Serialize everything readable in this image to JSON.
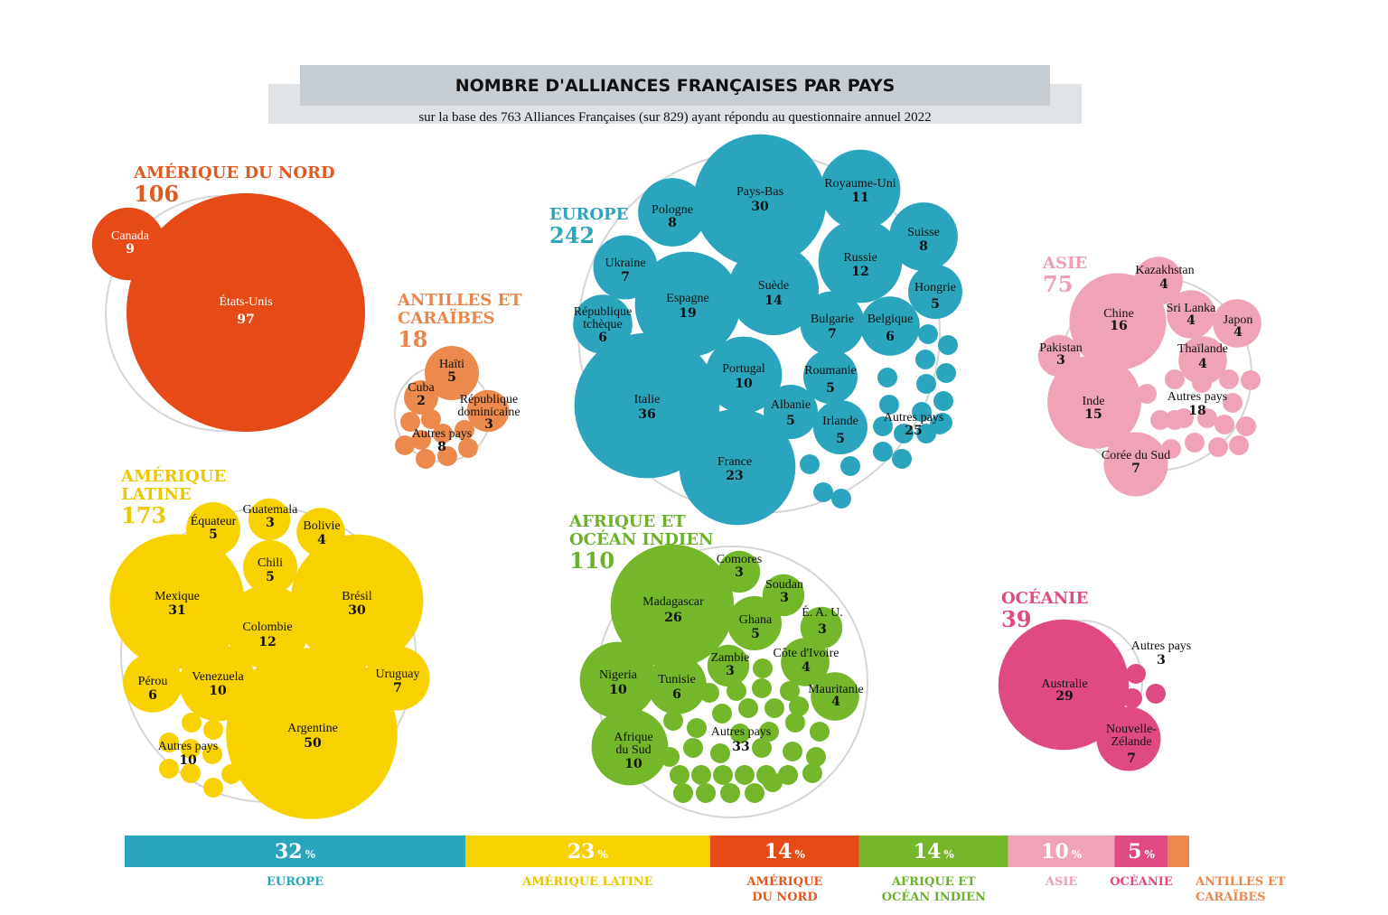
{
  "banner": {
    "title": "NOMBRE D'ALLIANCES FRANÇAISES PAR PAYS",
    "subtitle": "sur la base des 763 Alliances Françaises (sur 829) ayant répondu au questionnaire annuel 2022"
  },
  "chart_data": {
    "type": "bubble",
    "regions": [
      {
        "key": "amerique-nord",
        "lines": [
          "AMÉRIQUE DU NORD"
        ],
        "total": "106",
        "color": "#e54a17",
        "label_color": "#e05a20",
        "countries": [
          {
            "name": "États-Unis",
            "value": 97,
            "lc": "#ffffff"
          },
          {
            "name": "Canada",
            "value": 9,
            "lc": "#ffffff"
          }
        ],
        "autres": null
      },
      {
        "key": "antilles",
        "lines": [
          "ANTILLES ET",
          "CARAÏBES"
        ],
        "total": "18",
        "color": "#ec8a4d",
        "label_color": "#e8874d",
        "countries": [
          {
            "name": "Haïti",
            "value": 5
          },
          {
            "name": "Cuba",
            "value": 2
          },
          {
            "name": "République dominicaine",
            "value": 3
          }
        ],
        "autres": {
          "name": "Autres pays",
          "value": 8
        }
      },
      {
        "key": "europe",
        "lines": [
          "EUROPE"
        ],
        "total": "242",
        "color": "#2ba5bd",
        "label_color": "#2ba5bd",
        "countries": [
          {
            "name": "Pays-Bas",
            "value": 30
          },
          {
            "name": "Royaume-Uni",
            "value": 11
          },
          {
            "name": "Pologne",
            "value": 8
          },
          {
            "name": "Suisse",
            "value": 8
          },
          {
            "name": "Ukraine",
            "value": 7
          },
          {
            "name": "Russie",
            "value": 12
          },
          {
            "name": "Espagne",
            "value": 19
          },
          {
            "name": "Suède",
            "value": 14
          },
          {
            "name": "Hongrie",
            "value": 5
          },
          {
            "name": "République tchèque",
            "value": 6
          },
          {
            "name": "Bulgarie",
            "value": 7
          },
          {
            "name": "Belgique",
            "value": 6
          },
          {
            "name": "Italie",
            "value": 36
          },
          {
            "name": "Portugal",
            "value": 10
          },
          {
            "name": "Roumanie",
            "value": 5
          },
          {
            "name": "Albanie",
            "value": 5
          },
          {
            "name": "Irlande",
            "value": 5
          },
          {
            "name": "France",
            "value": 23
          }
        ],
        "autres": {
          "name": "Autres pays",
          "value": 25
        }
      },
      {
        "key": "asie",
        "lines": [
          "ASIE"
        ],
        "total": "75",
        "color": "#f0a3b6",
        "label_color": "#ee9fb4",
        "countries": [
          {
            "name": "Kazakhstan",
            "value": 4
          },
          {
            "name": "Chine",
            "value": 16
          },
          {
            "name": "Sri Lanka",
            "value": 4
          },
          {
            "name": "Japon",
            "value": 4
          },
          {
            "name": "Pakistan",
            "value": 3
          },
          {
            "name": "Thaïlande",
            "value": 4
          },
          {
            "name": "Inde",
            "value": 15
          },
          {
            "name": "Corée du Sud",
            "value": 7
          }
        ],
        "autres": {
          "name": "Autres pays",
          "value": 18
        }
      },
      {
        "key": "amerique-latine",
        "lines": [
          "AMÉRIQUE",
          "LATINE"
        ],
        "total": "173",
        "color": "#f8d200",
        "label_color": "#ecc800",
        "countries": [
          {
            "name": "Équateur",
            "value": 5
          },
          {
            "name": "Guatemala",
            "value": 3
          },
          {
            "name": "Bolivie",
            "value": 4
          },
          {
            "name": "Chili",
            "value": 5
          },
          {
            "name": "Mexique",
            "value": 31
          },
          {
            "name": "Brésil",
            "value": 30
          },
          {
            "name": "Colombie",
            "value": 12
          },
          {
            "name": "Pérou",
            "value": 6
          },
          {
            "name": "Venezuela",
            "value": 10
          },
          {
            "name": "Uruguay",
            "value": 7
          },
          {
            "name": "Argentine",
            "value": 50
          }
        ],
        "autres": {
          "name": "Autres pays",
          "value": 10
        }
      },
      {
        "key": "afrique",
        "lines": [
          "AFRIQUE ET",
          "OCÉAN INDIEN"
        ],
        "total": "110",
        "color": "#74b72b",
        "label_color": "#6cb12a",
        "countries": [
          {
            "name": "Comores",
            "value": 3
          },
          {
            "name": "Soudan",
            "value": 3
          },
          {
            "name": "Madagascar",
            "value": 26
          },
          {
            "name": "Ghana",
            "value": 5
          },
          {
            "name": "É. A. U.",
            "value": 3
          },
          {
            "name": "Zambie",
            "value": 3
          },
          {
            "name": "Côte d'Ivoire",
            "value": 4
          },
          {
            "name": "Nigeria",
            "value": 10
          },
          {
            "name": "Tunisie",
            "value": 6
          },
          {
            "name": "Mauritanie",
            "value": 4
          },
          {
            "name": "Afrique du Sud",
            "value": 10
          }
        ],
        "autres": {
          "name": "Autres pays",
          "value": 33
        }
      },
      {
        "key": "oceanie",
        "lines": [
          "OCÉANIE"
        ],
        "total": "39",
        "color": "#e04a82",
        "label_color": "#df4a82",
        "countries": [
          {
            "name": "Australie",
            "value": 29
          },
          {
            "name": "Nouvelle-Zélande",
            "value": 7
          }
        ],
        "autres": {
          "name": "Autres pays",
          "value": 3
        }
      }
    ],
    "share_bar": [
      {
        "pct": "32",
        "unit": "%",
        "label_lines": [
          "EUROPE"
        ],
        "color": "#2ba5bd",
        "label_color": "#2ba5bd"
      },
      {
        "pct": "23",
        "unit": "%",
        "label_lines": [
          "AMÉRIQUE LATINE"
        ],
        "color": "#f8d200",
        "label_color": "#e8c500"
      },
      {
        "pct": "14",
        "unit": "%",
        "label_lines": [
          "AMÉRIQUE",
          "DU NORD"
        ],
        "color": "#e54a17",
        "label_color": "#e05a20"
      },
      {
        "pct": "14",
        "unit": "%",
        "label_lines": [
          "AFRIQUE ET",
          "OCÉAN INDIEN"
        ],
        "color": "#74b72b",
        "label_color": "#6cb12a"
      },
      {
        "pct": "10",
        "unit": "%",
        "label_lines": [
          "ASIE"
        ],
        "color": "#f0a3b6",
        "label_color": "#ee9fb4"
      },
      {
        "pct": "5",
        "unit": "%",
        "label_lines": [
          "OCÉANIE"
        ],
        "color": "#e04a82",
        "label_color": "#df4a82"
      },
      {
        "pct": "2",
        "unit": "%",
        "label_lines": [
          "ANTILLES ET",
          "CARAÏBES"
        ],
        "color": "#ec8a4d",
        "label_color": "#e8874d"
      }
    ]
  }
}
